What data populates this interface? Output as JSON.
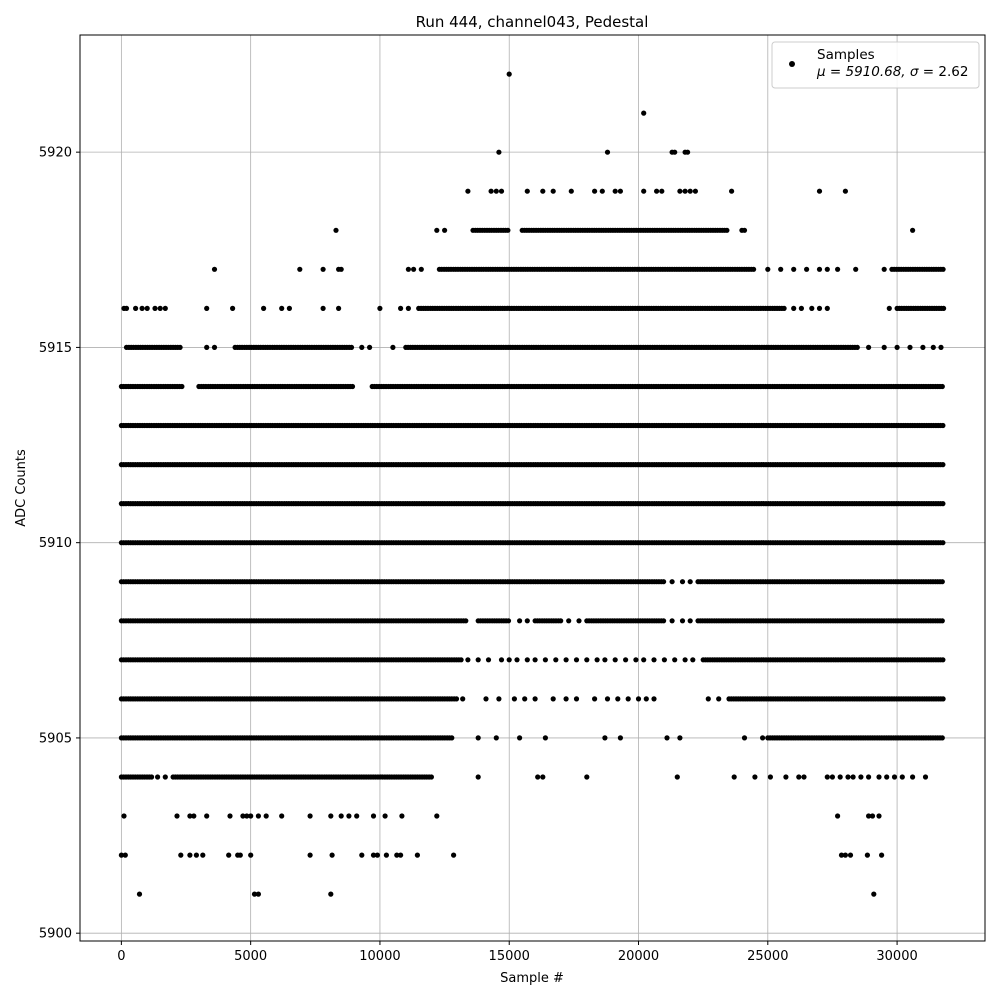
{
  "chart_data": {
    "type": "scatter",
    "title": "Run 444, channel043, Pedestal",
    "xlabel": "Sample #",
    "ylabel": "ADC Counts",
    "xlim": [
      -1600,
      33400
    ],
    "ylim": [
      5899.8,
      5923.0
    ],
    "xticks": [
      0,
      5000,
      10000,
      15000,
      20000,
      25000,
      30000
    ],
    "yticks": [
      5900,
      5905,
      5910,
      5915,
      5920
    ],
    "grid": true,
    "marker_color": "#000000",
    "legend": {
      "placement": "top-right",
      "series_name": "Samples",
      "stats_prefix": "μ = 5910.68, ",
      "stats_sigma": "σ",
      "stats_suffix": " = 2.62"
    },
    "series": [
      {
        "name": "Samples",
        "note_bands": "Each ADC level is drawn as the x-ranges (in sample numbers) where samples are densely present, plus sparse single samples.",
        "levels": [
          {
            "y": 5901,
            "ranges": [],
            "points": [
              700,
              5150,
              5300,
              8100,
              29100
            ]
          },
          {
            "y": 5902,
            "ranges": [],
            "points": [
              0,
              150,
              2300,
              2650,
              2900,
              3150,
              4150,
              4500,
              4600,
              5000,
              7300,
              8150,
              9300,
              9750,
              9900,
              10250,
              10650,
              10800,
              11450,
              12850,
              27850,
              28000,
              28200,
              28850,
              29400
            ]
          },
          {
            "y": 5903,
            "ranges": [],
            "points": [
              100,
              2150,
              2650,
              2800,
              3300,
              4200,
              4700,
              4850,
              5000,
              5300,
              5600,
              6200,
              7300,
              8100,
              8500,
              8800,
              9100,
              9750,
              10200,
              10850,
              12200,
              27700,
              28900,
              29050,
              29300
            ]
          },
          {
            "y": 5904,
            "ranges": [
              [
                0,
                1200
              ],
              [
                2000,
                12000
              ]
            ],
            "points": [
              1400,
              1700,
              13800,
              16100,
              16300,
              18000,
              21500,
              23700,
              24500,
              25100,
              25700,
              26200,
              26400,
              27300,
              27500,
              27800,
              28100,
              28300,
              28600,
              28900,
              29300,
              29600,
              29900,
              30200,
              30600,
              31100
            ]
          },
          {
            "y": 5905,
            "ranges": [
              [
                0,
                12800
              ],
              [
                25000,
                31800
              ]
            ],
            "points": [
              13800,
              14500,
              15400,
              16400,
              18700,
              19300,
              21100,
              21600,
              24100,
              24800
            ]
          },
          {
            "y": 5906,
            "ranges": [
              [
                0,
                13000
              ],
              [
                23500,
                31800
              ]
            ],
            "points": [
              13200,
              14100,
              14600,
              15200,
              15600,
              16000,
              16700,
              17200,
              17600,
              18300,
              18800,
              19200,
              19600,
              20000,
              20300,
              20600,
              22700,
              23100
            ]
          },
          {
            "y": 5907,
            "ranges": [
              [
                0,
                13200
              ],
              [
                22500,
                31800
              ]
            ],
            "points": [
              13400,
              13800,
              14200,
              14700,
              15000,
              15300,
              15700,
              16000,
              16400,
              16800,
              17200,
              17600,
              18000,
              18400,
              18700,
              19100,
              19500,
              19900,
              20200,
              20600,
              21000,
              21400,
              21800,
              22100
            ]
          },
          {
            "y": 5908,
            "ranges": [
              [
                0,
                13400
              ],
              [
                13800,
                15000
              ],
              [
                16000,
                17000
              ],
              [
                18000,
                21000
              ],
              [
                22300,
                31800
              ]
            ],
            "points": [
              15400,
              15700,
              17300,
              17700,
              21300,
              21700,
              22000
            ]
          },
          {
            "y": 5909,
            "ranges": [
              [
                0,
                21000
              ],
              [
                22300,
                31800
              ]
            ],
            "points": [
              21300,
              21700,
              22000
            ]
          },
          {
            "y": 5910,
            "ranges": [
              [
                0,
                31800
              ]
            ],
            "points": []
          },
          {
            "y": 5911,
            "ranges": [
              [
                0,
                31800
              ]
            ],
            "points": []
          },
          {
            "y": 5912,
            "ranges": [
              [
                0,
                31800
              ]
            ],
            "points": []
          },
          {
            "y": 5913,
            "ranges": [
              [
                0,
                31800
              ]
            ],
            "points": []
          },
          {
            "y": 5914,
            "ranges": [
              [
                0,
                2400
              ],
              [
                3000,
                9000
              ],
              [
                9700,
                31800
              ]
            ],
            "points": []
          },
          {
            "y": 5915,
            "ranges": [
              [
                200,
                2300
              ],
              [
                4400,
                8900
              ],
              [
                11000,
                28500
              ]
            ],
            "points": [
              3300,
              3600,
              9300,
              9600,
              10500,
              28900,
              29500,
              30000,
              30500,
              31000,
              31400,
              31700
            ]
          },
          {
            "y": 5916,
            "ranges": [
              [
                11500,
                25700
              ],
              [
                30000,
                31800
              ]
            ],
            "points": [
              100,
              200,
              550,
              800,
              1000,
              1300,
              1500,
              1700,
              3300,
              4300,
              5500,
              6200,
              6500,
              7800,
              8400,
              10000,
              10800,
              11100,
              26000,
              26300,
              26700,
              27000,
              27300,
              29700
            ]
          },
          {
            "y": 5917,
            "ranges": [
              [
                12300,
                24500
              ],
              [
                29800,
                31800
              ]
            ],
            "points": [
              3600,
              6900,
              7800,
              8400,
              8500,
              11100,
              11300,
              11600,
              25000,
              25500,
              26000,
              26500,
              27000,
              27300,
              27700,
              28400,
              29500
            ]
          },
          {
            "y": 5918,
            "ranges": [
              [
                13600,
                15000
              ],
              [
                15500,
                23500
              ]
            ],
            "points": [
              8300,
              12200,
              12500,
              24000,
              24100,
              30600
            ]
          },
          {
            "y": 5919,
            "ranges": [],
            "points": [
              13400,
              14300,
              14500,
              14700,
              15700,
              16300,
              16700,
              17400,
              18300,
              18600,
              19100,
              19300,
              20200,
              20700,
              20900,
              21600,
              21800,
              22000,
              22200,
              23600,
              27000,
              28000
            ]
          },
          {
            "y": 5920,
            "ranges": [],
            "points": [
              14600,
              18800,
              21300,
              21400,
              21800,
              21900
            ]
          },
          {
            "y": 5921,
            "ranges": [],
            "points": [
              20200
            ]
          },
          {
            "y": 5922,
            "ranges": [],
            "points": [
              15000
            ]
          }
        ]
      }
    ]
  }
}
